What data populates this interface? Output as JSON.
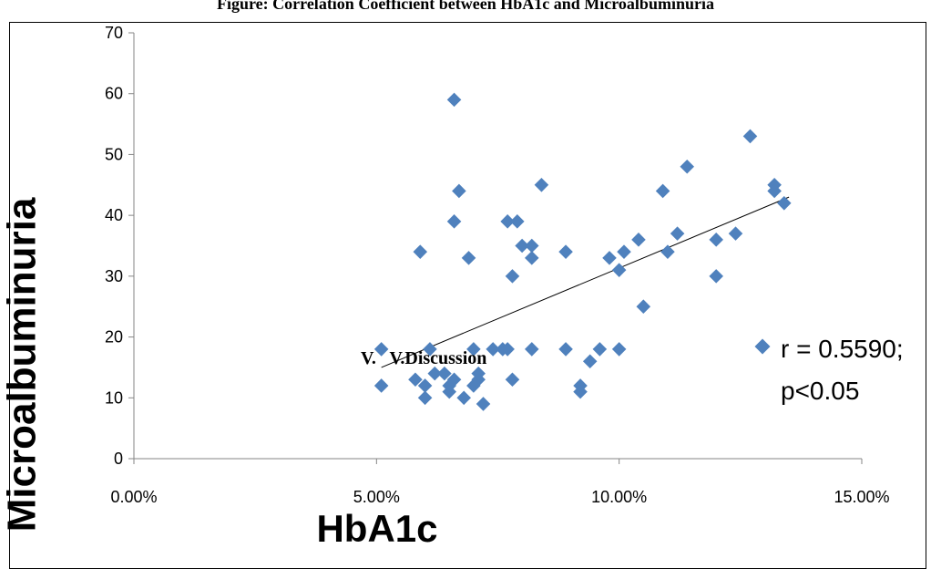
{
  "figure_caption": "Figure: Correlation Coefficient between HbA1c and Microalbuminuria",
  "overlay_text": "V.   V.Discussion",
  "chart_data": {
    "type": "scatter",
    "title": "",
    "xlabel": "HbA1c",
    "ylabel": "Microalbuminuria",
    "xlim": [
      0,
      0.15
    ],
    "ylim": [
      0,
      70
    ],
    "x_ticks": [
      "0.00%",
      "5.00%",
      "10.00%",
      "15.00%"
    ],
    "y_ticks": [
      "0",
      "10",
      "20",
      "30",
      "40",
      "50",
      "60",
      "70"
    ],
    "grid": false,
    "legend_position": "right",
    "legend_lines": [
      "r = 0.5590;",
      "p<0.05"
    ],
    "marker_color": "#4f81bd",
    "trendline": {
      "x": [
        0.051,
        0.135
      ],
      "y": [
        15,
        43
      ]
    },
    "series": [
      {
        "name": "r = 0.5590; p<0.05",
        "points": [
          [
            0.066,
            59
          ],
          [
            0.127,
            53
          ],
          [
            0.132,
            45
          ],
          [
            0.132,
            44
          ],
          [
            0.134,
            42
          ],
          [
            0.067,
            44
          ],
          [
            0.084,
            45
          ],
          [
            0.109,
            44
          ],
          [
            0.114,
            48
          ],
          [
            0.066,
            39
          ],
          [
            0.077,
            39
          ],
          [
            0.079,
            39
          ],
          [
            0.059,
            34
          ],
          [
            0.069,
            33
          ],
          [
            0.08,
            35
          ],
          [
            0.082,
            35
          ],
          [
            0.082,
            33
          ],
          [
            0.078,
            30
          ],
          [
            0.089,
            34
          ],
          [
            0.098,
            33
          ],
          [
            0.1,
            31
          ],
          [
            0.101,
            34
          ],
          [
            0.104,
            36
          ],
          [
            0.11,
            34
          ],
          [
            0.112,
            37
          ],
          [
            0.12,
            36
          ],
          [
            0.124,
            37
          ],
          [
            0.12,
            30
          ],
          [
            0.105,
            25
          ],
          [
            0.051,
            18
          ],
          [
            0.061,
            18
          ],
          [
            0.07,
            18
          ],
          [
            0.074,
            18
          ],
          [
            0.076,
            18
          ],
          [
            0.077,
            18
          ],
          [
            0.082,
            18
          ],
          [
            0.089,
            18
          ],
          [
            0.096,
            18
          ],
          [
            0.1,
            18
          ],
          [
            0.051,
            12
          ],
          [
            0.058,
            13
          ],
          [
            0.06,
            12
          ],
          [
            0.06,
            10
          ],
          [
            0.062,
            14
          ],
          [
            0.064,
            14
          ],
          [
            0.065,
            11
          ],
          [
            0.065,
            12
          ],
          [
            0.066,
            13
          ],
          [
            0.068,
            10
          ],
          [
            0.07,
            12
          ],
          [
            0.071,
            13
          ],
          [
            0.071,
            14
          ],
          [
            0.072,
            9
          ],
          [
            0.078,
            13
          ],
          [
            0.092,
            12
          ],
          [
            0.092,
            11
          ],
          [
            0.094,
            16
          ]
        ]
      }
    ]
  }
}
